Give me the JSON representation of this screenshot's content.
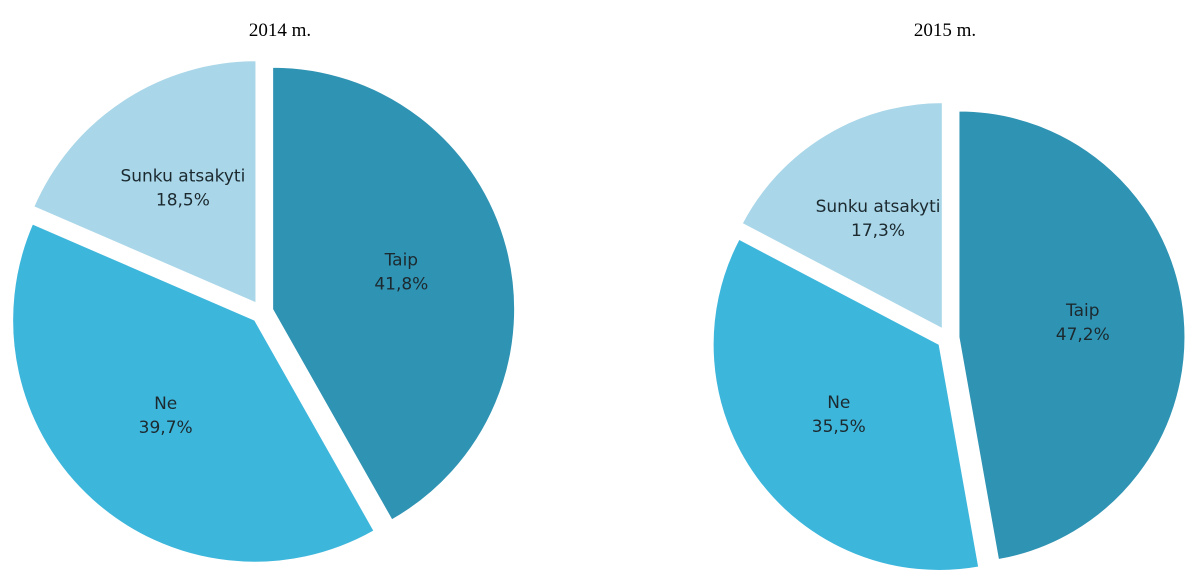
{
  "chart_data": [
    {
      "type": "pie",
      "title": "2014 m.",
      "categories": [
        "Taip",
        "Ne",
        "Sunku atsakyti"
      ],
      "values": [
        41.8,
        39.7,
        18.5
      ],
      "value_labels": [
        "41,8%",
        "39,7%",
        "18,5%"
      ],
      "colors": [
        "#2f93b3",
        "#3db6dc",
        "#a9d6e8"
      ]
    },
    {
      "type": "pie",
      "title": "2015 m.",
      "categories": [
        "Taip",
        "Ne",
        "Sunku atsakyti"
      ],
      "values": [
        47.2,
        35.5,
        17.3
      ],
      "value_labels": [
        "47,2%",
        "35,5%",
        "17,3%"
      ],
      "colors": [
        "#2f93b3",
        "#3db6dc",
        "#a9d6e8"
      ]
    }
  ]
}
